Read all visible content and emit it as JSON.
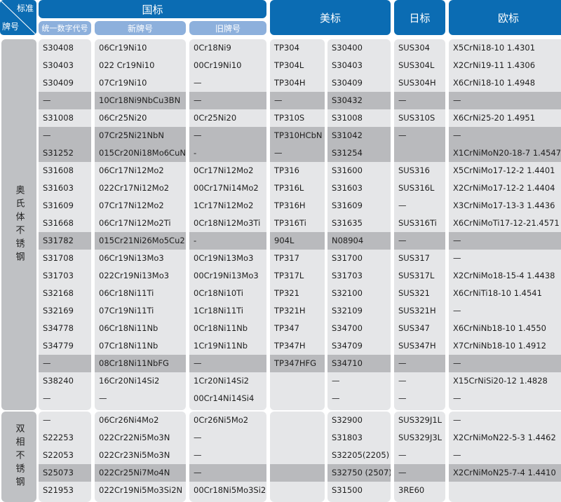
{
  "header": {
    "corner_top": "标准",
    "corner_bottom": "牌号",
    "gb": "国标",
    "gb_sub": [
      "统一数字代号",
      "新牌号",
      "旧牌号"
    ],
    "astm": "美标",
    "jis": "日标",
    "en": "欧标"
  },
  "colors": {
    "header": "#0b6cb3",
    "subheader": "#8db0dc",
    "cell": "#e5e6e8",
    "highlight": "#b9babd"
  },
  "groups": [
    {
      "category": "奥氏体不锈钢",
      "rows": [
        {
          "cells": [
            "S30408",
            "06Cr19Ni10",
            "0Cr18Ni9",
            "TP304",
            "S30400",
            "SUS304",
            "X5CrNi18-10 1.4301"
          ]
        },
        {
          "cells": [
            "S30403",
            "022 Cr19Ni10",
            "00Cr19Ni10",
            "TP304L",
            "S30403",
            "SUS304L",
            "X2CrNi19-11  1.4306"
          ]
        },
        {
          "cells": [
            "S30409",
            "07Cr19Ni10",
            "—",
            "TP304H",
            "S30409",
            "SUS304H",
            "X6CrNi18-10  1.4948"
          ]
        },
        {
          "cells": [
            "—",
            "10Cr18Ni9NbCu3BN",
            "—",
            "—",
            "S30432",
            "—",
            "—"
          ],
          "highlighted": true
        },
        {
          "cells": [
            "S31008",
            "06Cr25Ni20",
            "0Cr25Ni20",
            "TP310S",
            "S31008",
            "SUS310S",
            "X6CrNi25-20 1.4951"
          ]
        },
        {
          "cells": [
            "—",
            "07Cr25Ni21NbN",
            "—",
            "TP310HCbN",
            "S31042",
            "—",
            "—"
          ],
          "highlighted": true
        },
        {
          "cells": [
            "S31252",
            "015Cr20Ni18Mo6CuN",
            "-",
            "—",
            "S31254",
            "",
            "X1CrNiMoN20-18-7 1.4547"
          ],
          "highlighted": true
        },
        {
          "cells": [
            "S31608",
            "06Cr17Ni12Mo2",
            "0Cr17Ni12Mo2",
            "TP316",
            "S31600",
            "SUS316",
            "X5CrNiMo17-12-2 1.4401"
          ]
        },
        {
          "cells": [
            "S31603",
            "022Cr17Ni12Mo2",
            "00Cr17Ni14Mo2",
            "TP316L",
            "S31603",
            "SUS316L",
            "X2CrNiMo17-12-2 1.4404"
          ]
        },
        {
          "cells": [
            "S31609",
            "07Cr17Ni12Mo2",
            "1Cr17Ni12Mo2",
            "TP316H",
            "S31609",
            "—",
            "X3CrNiMo17-13-3 1.4436"
          ]
        },
        {
          "cells": [
            "S31668",
            "06Cr17Ni12Mo2Ti",
            "0Cr18Ni12Mo3Ti",
            "TP316Ti",
            "S31635",
            "SUS316Ti",
            "X6CrNiMoTi17-12-21.4571"
          ]
        },
        {
          "cells": [
            "S31782",
            "015Cr21Ni26Mo5Cu2",
            "-",
            "904L",
            "N08904",
            "—",
            "—"
          ],
          "highlighted": true
        },
        {
          "cells": [
            "S31708",
            "06Cr19Ni13Mo3",
            "0Cr19Ni13Mo3",
            "TP317",
            "S31700",
            "SUS317",
            "—"
          ]
        },
        {
          "cells": [
            "S31703",
            "022Cr19Ni13Mo3",
            "00Cr19Ni13Mo3",
            "TP317L",
            "S31703",
            "SUS317L",
            "X2CrNiMo18-15-4 1.4438"
          ]
        },
        {
          "cells": [
            "S32168",
            "06Cr18Ni11Ti",
            "0Cr18Ni10Ti",
            "TP321",
            "S32100",
            "SUS321",
            "X6CrNiTi18-10 1.4541"
          ]
        },
        {
          "cells": [
            "S32169",
            "07Cr19Ni11Ti",
            "1Cr18Ni11Ti",
            "TP321H",
            "S32109",
            "SUS321H",
            "—"
          ]
        },
        {
          "cells": [
            "S34778",
            "06Cr18Ni11Nb",
            "0Cr18Ni11Nb",
            "TP347",
            "S34700",
            "SUS347",
            "X6CrNiNb18-10 1.4550"
          ]
        },
        {
          "cells": [
            "S34779",
            "07Cr18Ni11Nb",
            "1Cr19Ni11Nb",
            "TP347H",
            "S34709",
            "SUS347H",
            "X7CrNiNb18-10 1.4912"
          ]
        },
        {
          "cells": [
            "—",
            "08Cr18Ni11NbFG",
            "—",
            "TP347HFG",
            "S34710",
            "—",
            "—"
          ],
          "highlighted": true
        },
        {
          "cells": [
            "S38240",
            "16Cr20Ni14Si2",
            "1Cr20Ni14Si2",
            "",
            "—",
            "—",
            "X15CrNiSi20-12 1.4828"
          ]
        },
        {
          "cells": [
            "—",
            "—",
            "00Cr14Ni14Si4",
            "",
            "—",
            "—",
            "—"
          ]
        }
      ]
    },
    {
      "category": "双相不锈钢",
      "rows": [
        {
          "cells": [
            "—",
            "06Cr26Ni4Mo2",
            "0Cr26Ni5Mo2",
            "",
            "S32900",
            "SUS329J1L",
            "—"
          ]
        },
        {
          "cells": [
            "S22253",
            "022Cr22Ni5Mo3N",
            "—",
            "",
            "S31803",
            "SUS329J3L",
            "X2CrNiMoN22-5-3 1.4462"
          ]
        },
        {
          "cells": [
            "S22053",
            "022Cr23Ni5Mo3N",
            "—",
            "",
            "S32205(2205)",
            "—",
            "—"
          ]
        },
        {
          "cells": [
            "S25073",
            "022Cr25Ni7Mo4N",
            "—",
            "",
            "S32750 (2507)",
            "—",
            "X2CrNiMoN25-7-4 1.4410"
          ],
          "highlighted": true
        },
        {
          "cells": [
            "S21953",
            "022Cr19Ni5Mo3Si2N",
            "00Cr18Ni5Mo3Si2",
            "",
            "S31500",
            "3RE60",
            ""
          ]
        }
      ]
    }
  ]
}
